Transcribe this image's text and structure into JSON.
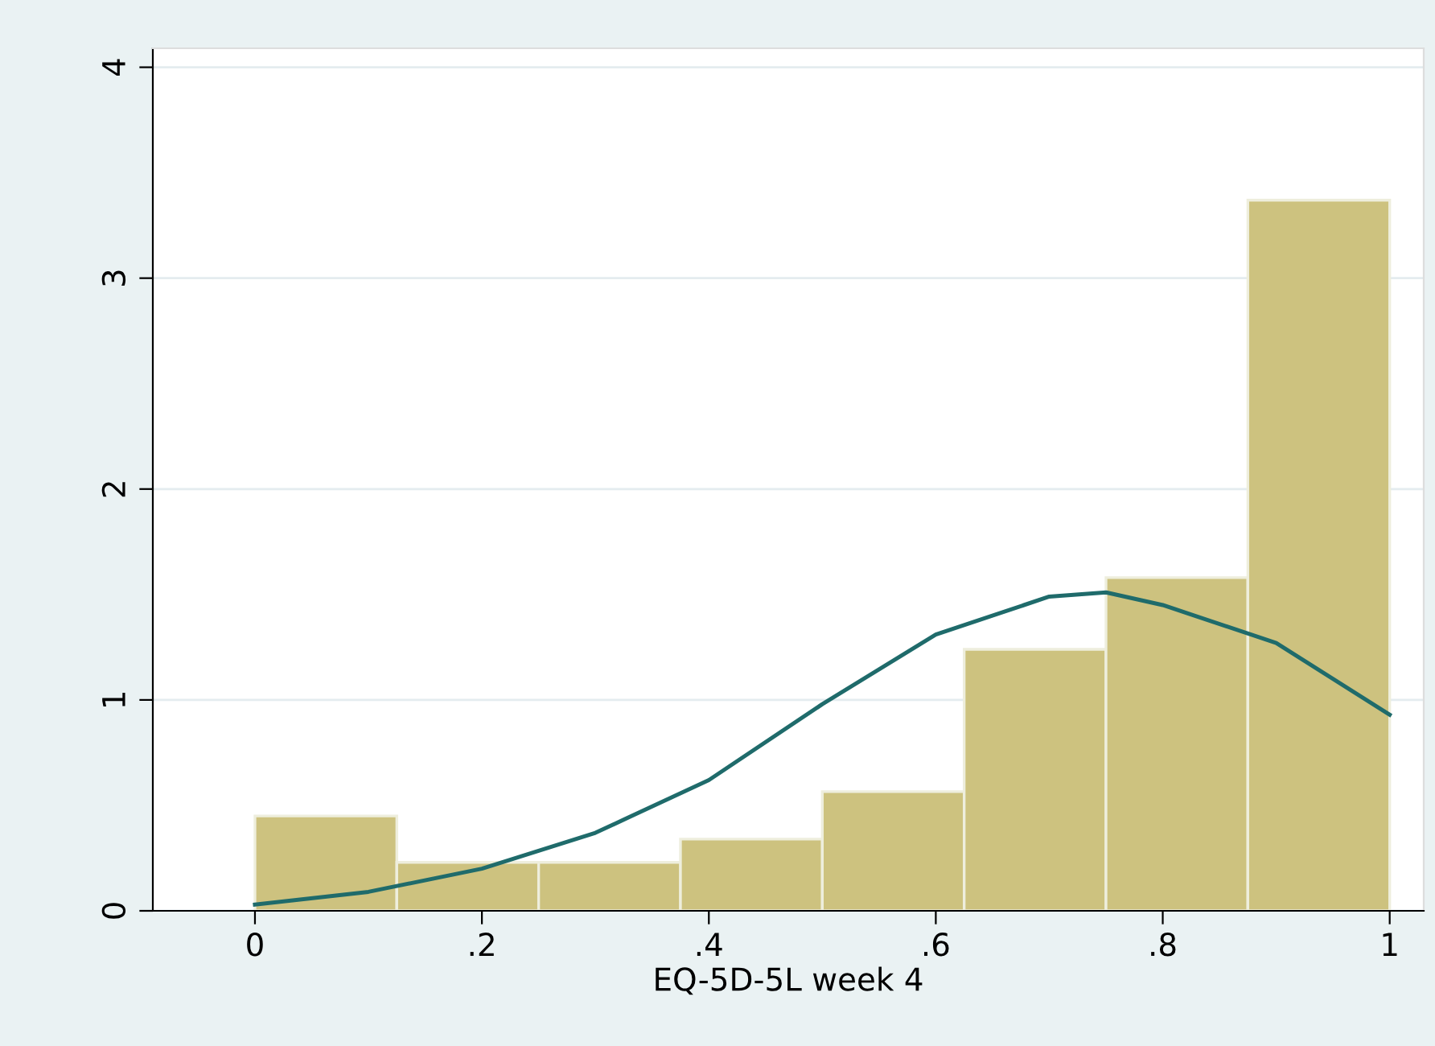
{
  "chart_data": {
    "type": "histogram",
    "xlabel": "EQ-5D-5L week 4",
    "bins": [
      0,
      0.125,
      0.25,
      0.375,
      0.5,
      0.625,
      0.75,
      0.875,
      1
    ],
    "values": [
      0.45,
      0.23,
      0.23,
      0.34,
      0.565,
      1.24,
      1.58,
      3.37
    ],
    "color": "#cdc27f",
    "series": [
      {
        "type": "line",
        "color": "#1f6b6b",
        "x": [
          0,
          0.1,
          0.2,
          0.3,
          0.4,
          0.5,
          0.6,
          0.7,
          0.75,
          0.8,
          0.9,
          1
        ],
        "values": [
          0.03,
          0.09,
          0.2,
          0.37,
          0.62,
          0.98,
          1.31,
          1.49,
          1.51,
          1.45,
          1.27,
          0.93
        ]
      }
    ],
    "xlim": [
      -0.09,
      1.03
    ],
    "ylim": [
      0,
      4.09
    ],
    "xticks": [
      {
        "value": 0,
        "label": "0"
      },
      {
        "value": 0.2,
        "label": ".2"
      },
      {
        "value": 0.4,
        "label": ".4"
      },
      {
        "value": 0.6,
        "label": ".6"
      },
      {
        "value": 0.8,
        "label": ".8"
      },
      {
        "value": 1,
        "label": "1"
      }
    ],
    "yticks": [
      0,
      1,
      2,
      3,
      4
    ],
    "grid": "y"
  }
}
